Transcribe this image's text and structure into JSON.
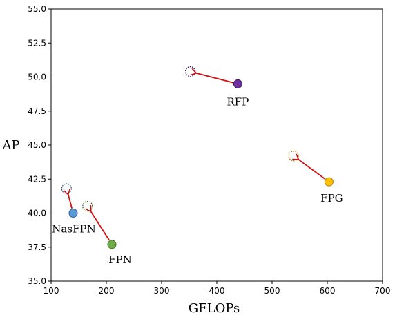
{
  "chart_data": {
    "type": "scatter",
    "xlabel": "GFLOPs",
    "ylabel": "AP",
    "xlim": [
      100,
      700
    ],
    "ylim": [
      35.0,
      55.0
    ],
    "x_ticks": [
      "100",
      "200",
      "300",
      "400",
      "500",
      "600",
      "700"
    ],
    "y_ticks": [
      "35.0",
      "37.5",
      "40.0",
      "42.5",
      "45.0",
      "47.5",
      "50.0",
      "52.5",
      "55.0"
    ],
    "grid": false,
    "arrow_color": "#d01010",
    "points": [
      {
        "label": "NasFPN",
        "from": [
          140,
          40.0
        ],
        "to": [
          128,
          41.8
        ],
        "color": "#5b9bd5",
        "edge": "#2e5f94"
      },
      {
        "label": "FPN",
        "from": [
          210,
          37.7
        ],
        "to": [
          166,
          40.5
        ],
        "color": "#70ad47",
        "edge": "#3f6e22"
      },
      {
        "label": "RFP",
        "from": [
          438,
          49.5
        ],
        "to": [
          352,
          50.4
        ],
        "color": "#7030a0",
        "edge": "#3a1560"
      },
      {
        "label": "FPG",
        "from": [
          603,
          42.3
        ],
        "to": [
          539,
          44.2
        ],
        "color": "#ffc000",
        "edge": "#b07d00"
      }
    ]
  }
}
